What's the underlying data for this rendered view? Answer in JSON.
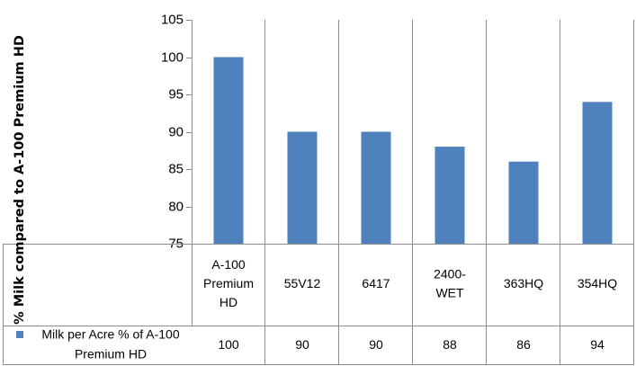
{
  "chart_data": {
    "type": "bar",
    "categories": [
      [
        "A-100",
        "Premium",
        "HD"
      ],
      [
        "55V12"
      ],
      [
        "6417"
      ],
      [
        "2400-",
        "WET"
      ],
      [
        "363HQ"
      ],
      [
        "354HQ"
      ]
    ],
    "series": [
      {
        "name": "Milk per Acre % of A-100 Premium HD",
        "name_lines": [
          "Milk per Acre % of A-100",
          "Premium HD"
        ],
        "values": [
          100,
          90,
          90,
          88,
          86,
          94
        ],
        "color": "#4F81BD"
      }
    ],
    "ylabel": "% Milk compared to A-100 Premium HD",
    "ylim": [
      75,
      105
    ],
    "yticks": [
      75,
      80,
      85,
      90,
      95,
      100,
      105
    ],
    "grid": "vertical lines between categories",
    "data_table": true,
    "colors": {
      "bar": "#4F81BD",
      "grid": "#8C8C8C",
      "text": "#000000"
    }
  }
}
